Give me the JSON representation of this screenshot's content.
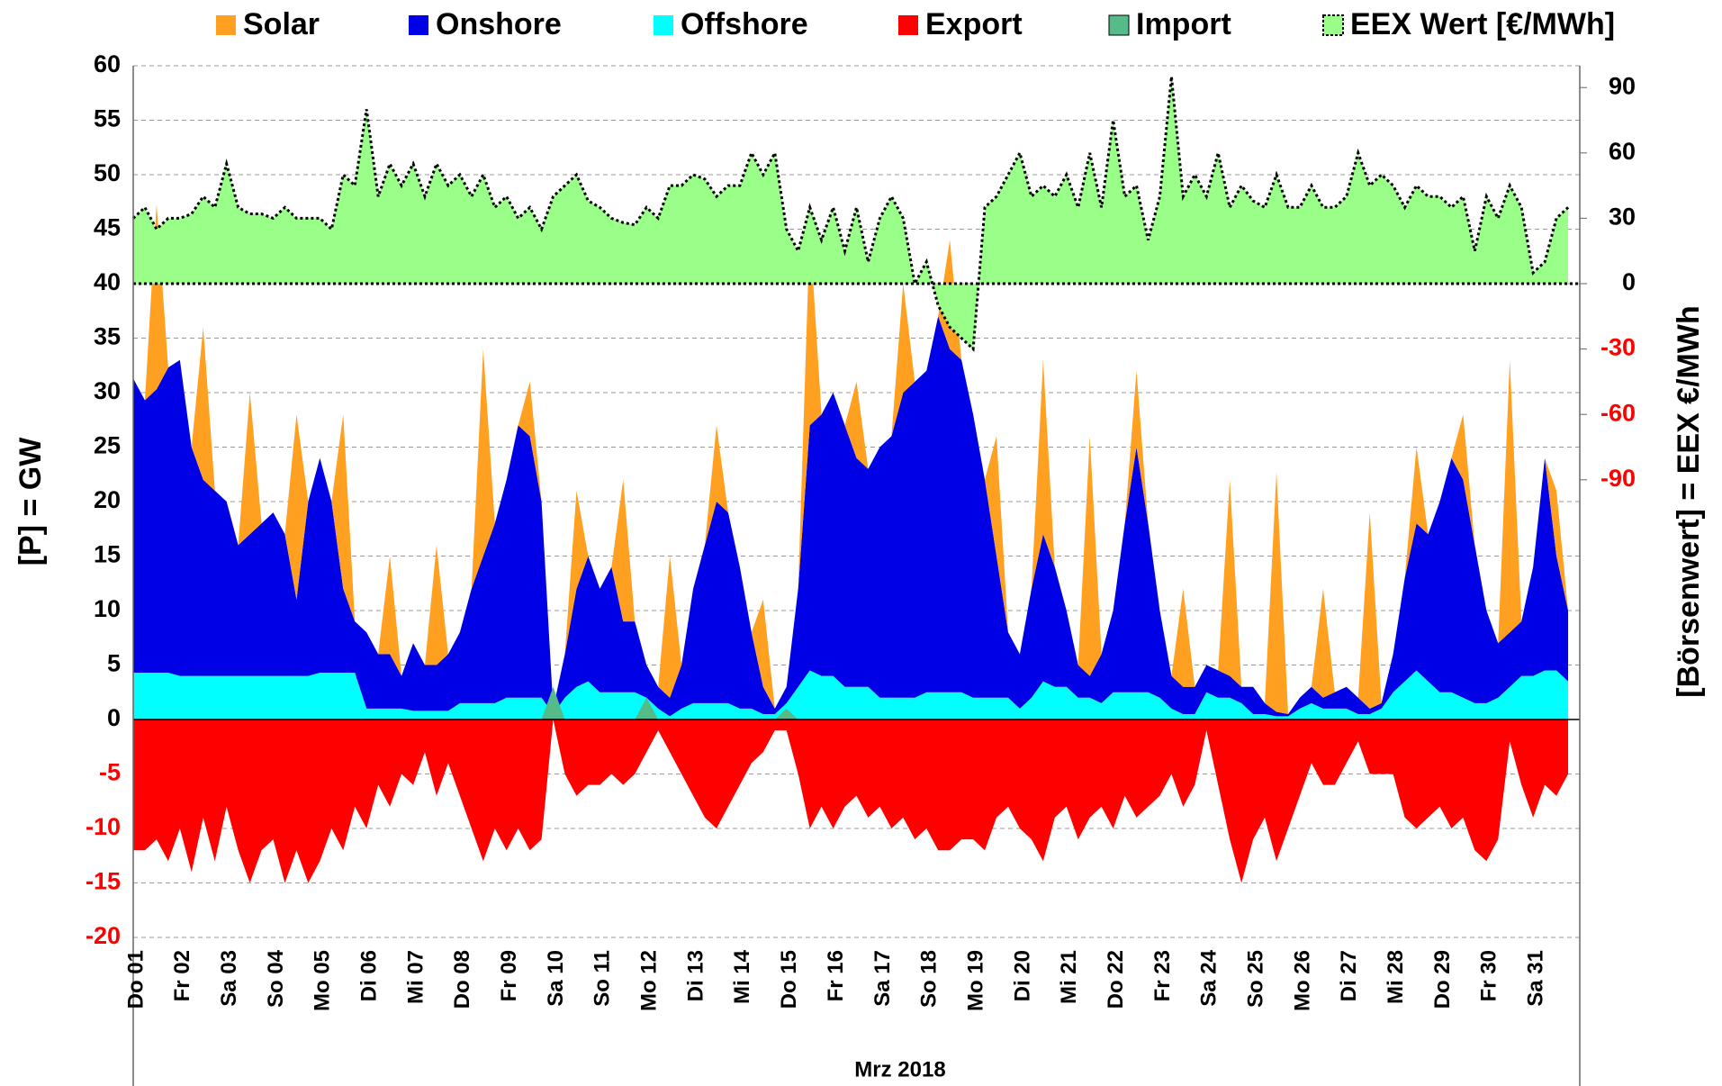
{
  "chart_data": {
    "type": "stacked_area",
    "x_label": "Mrz 2018",
    "y_label": "[P] = GW",
    "y2_label": "[Börsenwert] =  EEX  €/MWh",
    "categories": [
      "Do 01",
      "Fr 02",
      "Sa 03",
      "So 04",
      "Mo 05",
      "Di 06",
      "Mi 07",
      "Do 08",
      "Fr 09",
      "Sa 10",
      "So 11",
      "Mo 12",
      "Di 13",
      "Mi 14",
      "Do 15",
      "Fr 16",
      "Sa 17",
      "So 18",
      "Mo 19",
      "Di 20",
      "Mi 21",
      "Do 22",
      "Fr 23",
      "Sa 24",
      "So 25",
      "Mo 26",
      "Di 27",
      "Mi 28",
      "Do 29",
      "Fr 30",
      "Sa 31"
    ],
    "ylim": [
      -20,
      60
    ],
    "yticks": [
      60,
      55,
      50,
      45,
      40,
      35,
      30,
      25,
      20,
      15,
      10,
      5,
      0,
      -5,
      -10,
      -15,
      -20
    ],
    "y2lim": [
      -300,
      100
    ],
    "y2ticks": [
      90,
      60,
      30,
      0,
      -30,
      -60,
      -90
    ],
    "negative_tick_color": "#ff0000",
    "grid": true,
    "series": [
      {
        "name": "Offshore",
        "color": "#00ffff",
        "stack": "pos",
        "values": [
          [
            4.3,
            4.3,
            4.3,
            4.3
          ],
          [
            4,
            4,
            4,
            4
          ],
          [
            4,
            4,
            4,
            4
          ],
          [
            4,
            4,
            4,
            4
          ],
          [
            4.3,
            4.3,
            4.3,
            4.3
          ],
          [
            1,
            1,
            1,
            1
          ],
          [
            0.8,
            0.8,
            0.8,
            0.8
          ],
          [
            1.5,
            1.5,
            1.5,
            1.5
          ],
          [
            2,
            2,
            2,
            2
          ],
          [
            0.5,
            2,
            3,
            3.5
          ],
          [
            2.5,
            2.5,
            2.5,
            2.5
          ],
          [
            2,
            1,
            0.3,
            1
          ],
          [
            1.5,
            1.5,
            1.5,
            1.5
          ],
          [
            1,
            1,
            0.5,
            0.5
          ],
          [
            1.5,
            3,
            4.5,
            4
          ],
          [
            4,
            3,
            3,
            3
          ],
          [
            2,
            2,
            2,
            2
          ],
          [
            2.5,
            2.5,
            2.5,
            2.5
          ],
          [
            2,
            2,
            2,
            2
          ],
          [
            1,
            2,
            3.5,
            3
          ],
          [
            3,
            2,
            2,
            1.5
          ],
          [
            2.5,
            2.5,
            2.5,
            2.5
          ],
          [
            2,
            1,
            0.5,
            0.5
          ],
          [
            2.5,
            2,
            2,
            1.5
          ],
          [
            0.5,
            0.5,
            0.3,
            0.3
          ],
          [
            1,
            1.5,
            1,
            1
          ],
          [
            1,
            0.5,
            0.5,
            1
          ],
          [
            2.5,
            3.5,
            4.5,
            3.5
          ],
          [
            2.5,
            2.5,
            2,
            1.5
          ],
          [
            1.5,
            2,
            3,
            4
          ],
          [
            4,
            4.5,
            4.5,
            3.5
          ]
        ]
      },
      {
        "name": "Onshore",
        "color": "#0000e6",
        "stack": "pos",
        "values": [
          [
            27,
            25,
            26,
            28
          ],
          [
            29,
            21,
            18,
            17
          ],
          [
            16,
            12,
            13,
            14
          ],
          [
            15,
            13,
            7,
            16
          ],
          [
            19.7,
            15.7,
            7.7,
            4.7
          ],
          [
            7,
            5,
            5,
            3
          ],
          [
            6.2,
            4.2,
            4.2,
            5.2
          ],
          [
            6.5,
            10.5,
            13.5,
            16.5
          ],
          [
            20,
            25,
            24,
            18
          ],
          [
            0.5,
            4,
            9,
            11.5
          ],
          [
            9.5,
            11.5,
            6.5,
            6.5
          ],
          [
            3,
            2,
            1.7,
            4
          ],
          [
            10.5,
            14.5,
            18.5,
            17.5
          ],
          [
            13,
            7,
            2.5,
            0.5
          ],
          [
            1.5,
            9,
            22.5,
            24
          ],
          [
            26,
            24,
            21,
            20
          ],
          [
            23,
            24,
            28,
            29
          ],
          [
            29.5,
            34.5,
            31.5,
            30.5
          ],
          [
            26,
            20,
            13,
            6
          ],
          [
            5,
            10,
            13.5,
            11
          ],
          [
            7,
            3,
            2,
            4.5
          ],
          [
            7.5,
            15.5,
            22.5,
            15.5
          ],
          [
            8,
            3,
            2.5,
            2.5
          ],
          [
            2.5,
            2.5,
            2,
            1.5
          ],
          [
            2.5,
            1,
            0.4,
            0.2
          ],
          [
            1,
            1.5,
            1,
            1.5
          ],
          [
            2,
            1.5,
            0.5,
            0.5
          ],
          [
            3.5,
            9.5,
            13.5,
            13.5
          ],
          [
            17.5,
            21.5,
            20,
            14.5
          ],
          [
            8.5,
            5,
            5,
            5
          ],
          [
            10,
            19.5,
            10.5,
            6.5
          ]
        ]
      },
      {
        "name": "Solar",
        "color": "#ffa020",
        "stack": "pos",
        "values": [
          [
            0,
            0,
            17,
            0
          ],
          [
            0,
            0,
            14,
            0
          ],
          [
            0,
            0,
            13,
            0
          ],
          [
            0,
            0,
            17,
            0
          ],
          [
            0,
            0,
            16,
            0
          ],
          [
            0,
            0,
            9,
            0
          ],
          [
            0,
            0,
            11,
            0
          ],
          [
            0,
            0,
            19,
            0
          ],
          [
            0,
            0,
            5,
            0
          ],
          [
            0,
            0,
            9,
            0
          ],
          [
            0,
            0,
            13,
            0
          ],
          [
            0,
            0,
            13,
            0
          ],
          [
            0,
            0,
            7,
            0
          ],
          [
            0,
            0,
            8,
            0
          ],
          [
            0,
            0,
            18,
            0
          ],
          [
            0,
            0,
            7,
            0
          ],
          [
            0,
            0,
            10,
            0
          ],
          [
            0,
            0,
            10,
            0
          ],
          [
            0,
            0,
            11,
            0
          ],
          [
            0,
            0,
            16,
            0
          ],
          [
            0,
            0,
            22,
            0
          ],
          [
            0,
            0,
            7,
            0
          ],
          [
            0,
            0,
            9,
            0
          ],
          [
            0,
            0,
            18,
            0
          ],
          [
            0,
            0,
            22,
            0
          ],
          [
            0,
            0,
            10,
            0
          ],
          [
            0,
            0,
            18,
            0
          ],
          [
            0,
            0,
            7,
            0
          ],
          [
            0,
            0,
            6,
            0
          ],
          [
            0,
            0,
            25,
            0
          ],
          [
            0,
            0,
            6,
            0
          ]
        ]
      },
      {
        "name": "Export",
        "color": "#ff0000",
        "stack": "neg",
        "values": [
          [
            -12,
            -12,
            -11,
            -13
          ],
          [
            -10,
            -14,
            -9,
            -13
          ],
          [
            -8,
            -12,
            -15,
            -12
          ],
          [
            -11,
            -15,
            -12,
            -15
          ],
          [
            -13,
            -10,
            -12,
            -8
          ],
          [
            -10,
            -6,
            -8,
            -5
          ],
          [
            -6,
            -3,
            -7,
            -4
          ],
          [
            -7,
            -10,
            -13,
            -10
          ],
          [
            -12,
            -10,
            -12,
            -11
          ],
          [
            0,
            -5,
            -7,
            -6
          ],
          [
            -6,
            -5,
            -6,
            -5
          ],
          [
            -3,
            -1,
            -3,
            -5
          ],
          [
            -7,
            -9,
            -10,
            -8
          ],
          [
            -6,
            -4,
            -3,
            -1
          ],
          [
            -1,
            -5,
            -10,
            -8
          ],
          [
            -10,
            -8,
            -7,
            -9
          ],
          [
            -8,
            -10,
            -9,
            -11
          ],
          [
            -10,
            -12,
            -12,
            -11
          ],
          [
            -11,
            -12,
            -9,
            -8
          ],
          [
            -10,
            -11,
            -13,
            -9
          ],
          [
            -8,
            -11,
            -9,
            -8
          ],
          [
            -10,
            -7,
            -9,
            -8
          ],
          [
            -7,
            -5,
            -8,
            -6
          ],
          [
            -1,
            -6,
            -11,
            -15
          ],
          [
            -11,
            -9,
            -13,
            -10
          ],
          [
            -7,
            -4,
            -6,
            -6
          ],
          [
            -4,
            -2,
            -5,
            -5
          ],
          [
            -5,
            -9,
            -10,
            -9
          ],
          [
            -8,
            -10,
            -9,
            -12
          ],
          [
            -13,
            -11,
            -2,
            -6
          ],
          [
            -9,
            -6,
            -7,
            -5
          ]
        ]
      },
      {
        "name": "Import",
        "color": "#55bb88",
        "stack": "imp",
        "values": [
          [
            0,
            0,
            0,
            0
          ],
          [
            0,
            0,
            0,
            0
          ],
          [
            0,
            0,
            0,
            0
          ],
          [
            0,
            0,
            0,
            0
          ],
          [
            0,
            0,
            0,
            0
          ],
          [
            0,
            0,
            0,
            0
          ],
          [
            0,
            0,
            0,
            0
          ],
          [
            0,
            0,
            0,
            0
          ],
          [
            0,
            0,
            0,
            0
          ],
          [
            3,
            0,
            0,
            0
          ],
          [
            0,
            0,
            0,
            0
          ],
          [
            2,
            0,
            0,
            0
          ],
          [
            0,
            0,
            0,
            0
          ],
          [
            0,
            0,
            0,
            0
          ],
          [
            1,
            0,
            0,
            0
          ],
          [
            0,
            0,
            0,
            0
          ],
          [
            0,
            0,
            0,
            0
          ],
          [
            0,
            0,
            0,
            0
          ],
          [
            0,
            0,
            0,
            0
          ],
          [
            0,
            0,
            0,
            0
          ],
          [
            0,
            0,
            0,
            0
          ],
          [
            0,
            0,
            0,
            0
          ],
          [
            0,
            0,
            0,
            0
          ],
          [
            0,
            0,
            0,
            0
          ],
          [
            0,
            0,
            0,
            0
          ],
          [
            0,
            0,
            0,
            0
          ],
          [
            0,
            0,
            0,
            0
          ],
          [
            0,
            0,
            0,
            0
          ],
          [
            0,
            0,
            0,
            0
          ],
          [
            0,
            0,
            0,
            0
          ],
          [
            0,
            0,
            0,
            0
          ]
        ]
      },
      {
        "name": "EEX Wert [€/MWh]",
        "color": "#99ff88",
        "axis": "y2",
        "values": [
          [
            30,
            35,
            25,
            30
          ],
          [
            30,
            32,
            40,
            35
          ],
          [
            55,
            35,
            32,
            32
          ],
          [
            30,
            35,
            30,
            30
          ],
          [
            30,
            25,
            50,
            45
          ],
          [
            80,
            40,
            55,
            45
          ],
          [
            55,
            40,
            55,
            45
          ],
          [
            50,
            40,
            50,
            35
          ],
          [
            40,
            30,
            35,
            25
          ],
          [
            40,
            45,
            50,
            38
          ],
          [
            35,
            30,
            28,
            27
          ],
          [
            35,
            30,
            45,
            45
          ],
          [
            50,
            48,
            40,
            45
          ],
          [
            45,
            60,
            50,
            60
          ],
          [
            25,
            15,
            35,
            20
          ],
          [
            35,
            15,
            35,
            10
          ],
          [
            30,
            40,
            30,
            0
          ],
          [
            10,
            -10,
            -20,
            -25
          ],
          [
            -30,
            35,
            40,
            50
          ],
          [
            60,
            40,
            45,
            40
          ],
          [
            50,
            35,
            60,
            35
          ],
          [
            75,
            40,
            45,
            20
          ],
          [
            40,
            95,
            40,
            50
          ],
          [
            40,
            60,
            35,
            45
          ],
          [
            38,
            35,
            50,
            35
          ],
          [
            35,
            45,
            35,
            35
          ],
          [
            40,
            60,
            45,
            50
          ],
          [
            45,
            35,
            45,
            40
          ],
          [
            40,
            35,
            40,
            15
          ],
          [
            40,
            30,
            45,
            35
          ],
          [
            5,
            10,
            30,
            35
          ]
        ]
      }
    ],
    "legend_order": [
      2,
      1,
      0,
      3,
      4,
      5
    ]
  }
}
